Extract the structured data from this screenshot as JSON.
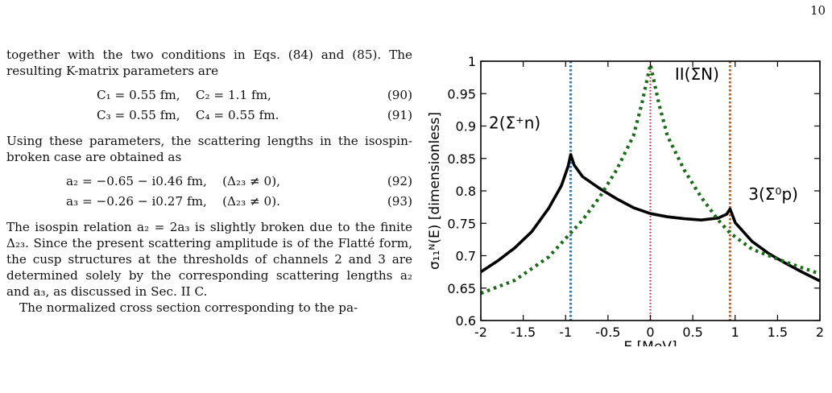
{
  "page_number": "10",
  "text": {
    "para1": "together with the two conditions in Eqs. (84) and (85). The resulting K-matrix parameters are",
    "eq90": {
      "body": "C₁ = 0.55 fm,    C₂ = 1.1 fm,",
      "num": "(90)"
    },
    "eq91": {
      "body": "C₃ = 0.55 fm,    C₄ = 0.55 fm.",
      "num": "(91)"
    },
    "para2": "Using these parameters, the scattering lengths in the isospin-broken case are obtained as",
    "eq92": {
      "body": "a₂ = −0.65 − i0.46 fm,    (Δ₂₃ ≠ 0),",
      "num": "(92)"
    },
    "eq93": {
      "body": "a₃ = −0.26 − i0.27 fm,    (Δ₂₃ ≠ 0).",
      "num": "(93)"
    },
    "para3": "The isospin relation a₂ = 2a₃ is slightly broken due to the finite Δ₂₃. Since the present scattering amplitude is of the Flatté form, the cusp structures at the thresholds of channels 2 and 3 are determined solely by the corresponding scattering lengths a₂ and a₃, as discussed in Sec. II C.",
    "para4": "The normalized cross section corresponding to the pa-"
  },
  "chart_data": {
    "type": "line",
    "xlabel": "E [MeV]",
    "ylabel": "σ₁₁ᴺ(E) [dimensionless]",
    "xlim": [
      -2,
      2
    ],
    "ylim": [
      0.6,
      1.0
    ],
    "xticks": [
      "-2",
      "-1.5",
      "-1",
      "-0.5",
      "0",
      "0.5",
      "1",
      "1.5",
      "2"
    ],
    "yticks": [
      "0.6",
      "0.65",
      "0.7",
      "0.75",
      "0.8",
      "0.85",
      "0.9",
      "0.95",
      "1"
    ],
    "grid": false,
    "series": [
      {
        "style": "solid",
        "color": "#000000",
        "x": [
          -2.0,
          -1.8,
          -1.6,
          -1.4,
          -1.2,
          -1.05,
          -0.97,
          -0.94,
          -0.9,
          -0.8,
          -0.6,
          -0.4,
          -0.2,
          0.0,
          0.2,
          0.4,
          0.6,
          0.8,
          0.9,
          0.94,
          0.97,
          1.0,
          1.2,
          1.4,
          1.6,
          1.8,
          2.0
        ],
        "y": [
          0.675,
          0.692,
          0.712,
          0.737,
          0.773,
          0.808,
          0.838,
          0.856,
          0.84,
          0.822,
          0.804,
          0.788,
          0.774,
          0.765,
          0.76,
          0.757,
          0.755,
          0.758,
          0.764,
          0.772,
          0.762,
          0.751,
          0.722,
          0.703,
          0.688,
          0.674,
          0.661
        ]
      },
      {
        "style": "dotted",
        "color": "#1a6b1a",
        "x": [
          -2.0,
          -1.6,
          -1.2,
          -0.94,
          -0.8,
          -0.6,
          -0.4,
          -0.2,
          -0.1,
          0.0,
          0.1,
          0.2,
          0.4,
          0.6,
          0.8,
          0.94,
          1.2,
          1.6,
          2.0
        ],
        "y": [
          0.642,
          0.662,
          0.698,
          0.735,
          0.755,
          0.79,
          0.832,
          0.885,
          0.935,
          0.995,
          0.935,
          0.885,
          0.832,
          0.79,
          0.755,
          0.735,
          0.71,
          0.69,
          0.672
        ]
      }
    ],
    "vlines": [
      {
        "x": -0.94,
        "color": "#2a7ec9"
      },
      {
        "x": 0.0,
        "color": "#c0143c"
      },
      {
        "x": 0.94,
        "color": "#c8641e"
      }
    ],
    "annotations": [
      {
        "text": "II(ΣN)",
        "x": 0.55,
        "y": 0.98
      },
      {
        "text": "2(Σ⁺n)",
        "x": -1.6,
        "y": 0.905
      },
      {
        "text": "3(Σ⁰p)",
        "x": 1.45,
        "y": 0.795
      }
    ]
  }
}
